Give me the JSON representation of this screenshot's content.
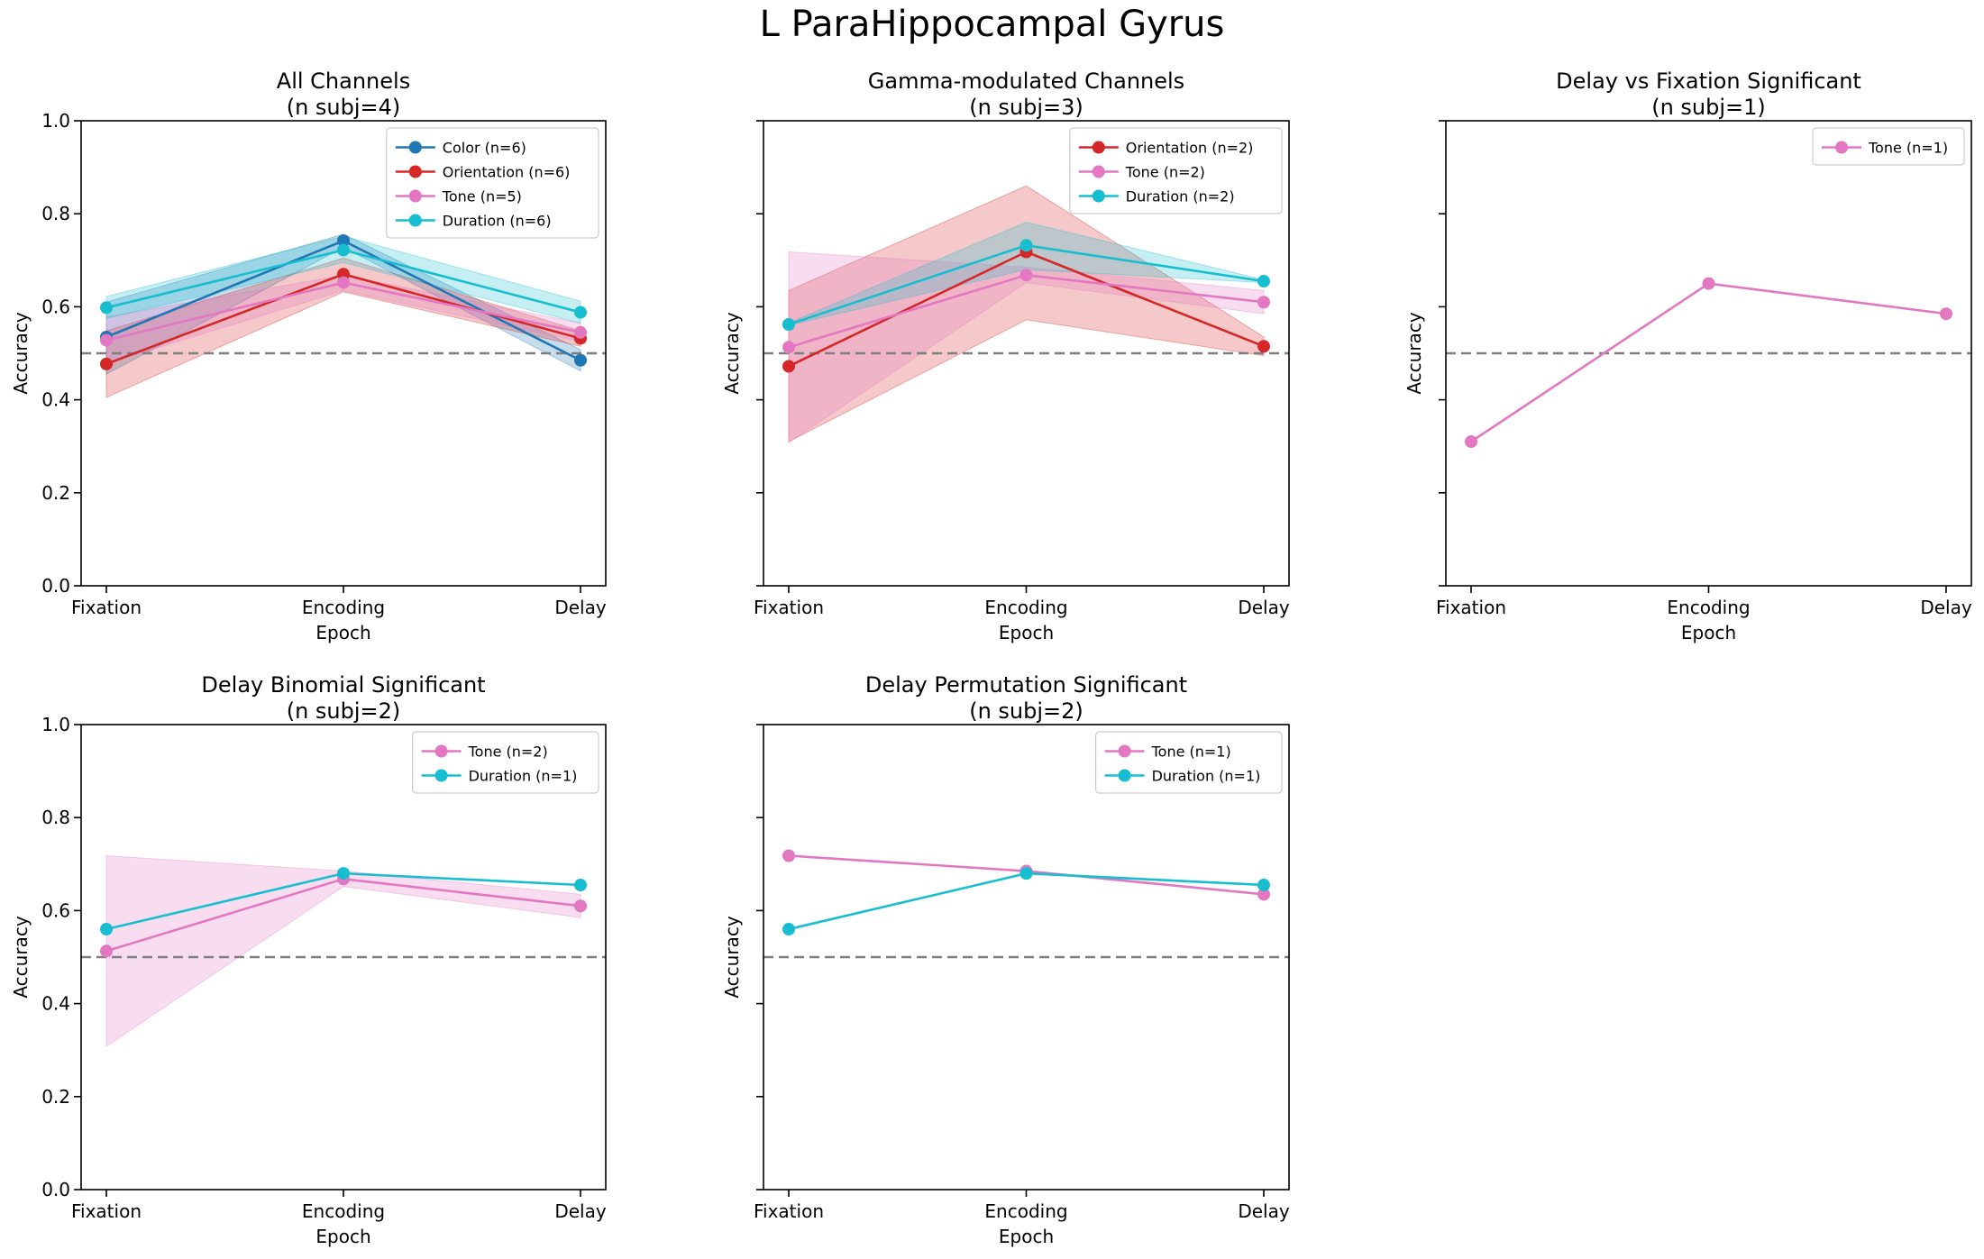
{
  "figure_title": "L ParaHippocampal Gyrus",
  "chance_level": 0.5,
  "chart_data": [
    {
      "type": "line",
      "title": "All Channels\n(n subj=4)",
      "xlabel": "Epoch",
      "ylabel": "Accuracy",
      "categories": [
        "Fixation",
        "Encoding",
        "Delay"
      ],
      "ylim": [
        0,
        1
      ],
      "yticks": [
        "0.0",
        "0.2",
        "0.4",
        "0.6",
        "0.8",
        "1.0"
      ],
      "show_ytick_labels": true,
      "show_xaxis": true,
      "legend": "top-right",
      "series": [
        {
          "name": "Color (n=6)",
          "color": "#1f77b4",
          "values": [
            0.535,
            0.742,
            0.485
          ],
          "lower": [
            0.455,
            0.728,
            0.462
          ],
          "upper": [
            0.61,
            0.756,
            0.508
          ]
        },
        {
          "name": "Orientation (n=6)",
          "color": "#d62728",
          "values": [
            0.477,
            0.67,
            0.532
          ],
          "lower": [
            0.405,
            0.632,
            0.515
          ],
          "upper": [
            0.548,
            0.705,
            0.548
          ]
        },
        {
          "name": "Tone (n=5)",
          "color": "#e377c2",
          "values": [
            0.528,
            0.652,
            0.545
          ],
          "lower": [
            0.478,
            0.635,
            0.525
          ],
          "upper": [
            0.578,
            0.668,
            0.565
          ]
        },
        {
          "name": "Duration (n=6)",
          "color": "#17becf",
          "values": [
            0.598,
            0.722,
            0.588
          ],
          "lower": [
            0.575,
            0.695,
            0.565
          ],
          "upper": [
            0.622,
            0.752,
            0.612
          ]
        }
      ]
    },
    {
      "type": "line",
      "title": "Gamma-modulated Channels\n(n subj=3)",
      "xlabel": "Epoch",
      "ylabel": "Accuracy",
      "categories": [
        "Fixation",
        "Encoding",
        "Delay"
      ],
      "ylim": [
        0,
        1
      ],
      "yticks": [
        "0.0",
        "0.2",
        "0.4",
        "0.6",
        "0.8",
        "1.0"
      ],
      "show_ytick_labels": false,
      "show_xaxis": true,
      "legend": "top-right",
      "series": [
        {
          "name": "Orientation (n=2)",
          "color": "#d62728",
          "values": [
            0.472,
            0.718,
            0.515
          ],
          "lower": [
            0.31,
            0.572,
            0.495
          ],
          "upper": [
            0.635,
            0.86,
            0.535
          ]
        },
        {
          "name": "Tone (n=2)",
          "color": "#e377c2",
          "values": [
            0.513,
            0.668,
            0.61
          ],
          "lower": [
            0.308,
            0.652,
            0.585
          ],
          "upper": [
            0.718,
            0.685,
            0.635
          ]
        },
        {
          "name": "Duration (n=2)",
          "color": "#17becf",
          "values": [
            0.562,
            0.732,
            0.655
          ],
          "lower": [
            0.56,
            0.68,
            0.652
          ],
          "upper": [
            0.565,
            0.782,
            0.658
          ]
        }
      ]
    },
    {
      "type": "line",
      "title": "Delay vs Fixation Significant\n(n subj=1)",
      "xlabel": "Epoch",
      "ylabel": "Accuracy",
      "categories": [
        "Fixation",
        "Encoding",
        "Delay"
      ],
      "ylim": [
        0,
        1
      ],
      "yticks": [
        "0.0",
        "0.2",
        "0.4",
        "0.6",
        "0.8",
        "1.0"
      ],
      "show_ytick_labels": false,
      "show_xaxis": true,
      "legend": "top-right",
      "series": [
        {
          "name": "Tone (n=1)",
          "color": "#e377c2",
          "values": [
            0.31,
            0.65,
            0.585
          ]
        }
      ]
    },
    {
      "type": "line",
      "title": "Delay Binomial Significant\n(n subj=2)",
      "xlabel": "Epoch",
      "ylabel": "Accuracy",
      "categories": [
        "Fixation",
        "Encoding",
        "Delay"
      ],
      "ylim": [
        0,
        1
      ],
      "yticks": [
        "0.0",
        "0.2",
        "0.4",
        "0.6",
        "0.8",
        "1.0"
      ],
      "show_ytick_labels": true,
      "show_xaxis": true,
      "legend": "top-right",
      "series": [
        {
          "name": "Tone (n=2)",
          "color": "#e377c2",
          "values": [
            0.513,
            0.668,
            0.61
          ],
          "lower": [
            0.308,
            0.652,
            0.585
          ],
          "upper": [
            0.718,
            0.685,
            0.635
          ]
        },
        {
          "name": "Duration (n=1)",
          "color": "#17becf",
          "values": [
            0.56,
            0.68,
            0.655
          ]
        }
      ]
    },
    {
      "type": "line",
      "title": "Delay Permutation Significant\n(n subj=2)",
      "xlabel": "Epoch",
      "ylabel": "Accuracy",
      "categories": [
        "Fixation",
        "Encoding",
        "Delay"
      ],
      "ylim": [
        0,
        1
      ],
      "yticks": [
        "0.0",
        "0.2",
        "0.4",
        "0.6",
        "0.8",
        "1.0"
      ],
      "show_ytick_labels": false,
      "show_xaxis": true,
      "legend": "top-right",
      "series": [
        {
          "name": "Tone (n=1)",
          "color": "#e377c2",
          "values": [
            0.718,
            0.685,
            0.635
          ]
        },
        {
          "name": "Duration (n=1)",
          "color": "#17becf",
          "values": [
            0.56,
            0.68,
            0.655
          ]
        }
      ]
    }
  ]
}
